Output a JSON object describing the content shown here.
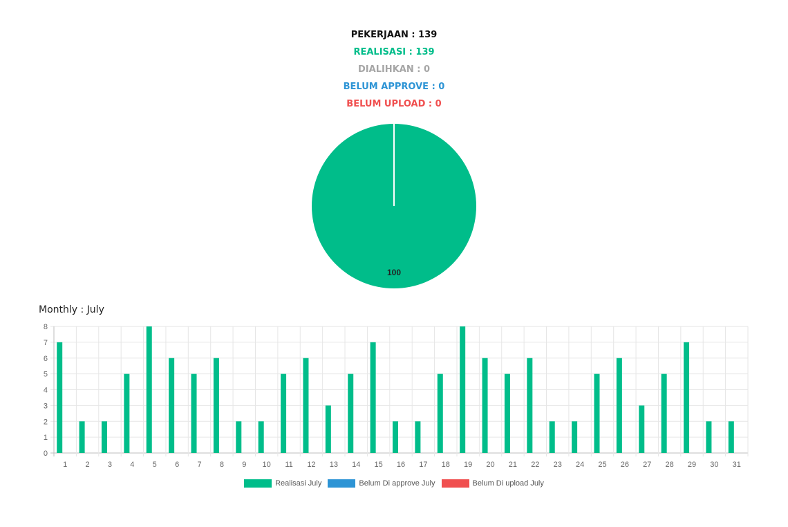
{
  "summary": {
    "pekerjaan": "PEKERJAAN : 139",
    "realisasi": "REALISASI : 139",
    "dialihkan": "DIALIHKAN : 0",
    "belum_approve": "BELUM APPROVE : 0",
    "belum_upload": "BELUM UPLOAD : 0"
  },
  "colors": {
    "realisasi": "#00bd8a",
    "belum_approve": "#2d94d5",
    "belum_upload": "#f04f4f",
    "dialihkan": "#a6a6a6"
  },
  "chart_data": [
    {
      "type": "pie",
      "slices": [
        {
          "label": "Realisasi",
          "value": 100,
          "color": "#00bd8a"
        },
        {
          "label": "Dialihkan",
          "value": 0,
          "color": "#a6a6a6"
        },
        {
          "label": "Belum Approve",
          "value": 0,
          "color": "#2d94d5"
        },
        {
          "label": "Belum Upload",
          "value": 0,
          "color": "#f04f4f"
        }
      ],
      "data_label": "100"
    },
    {
      "type": "bar",
      "title": "Monthly : July",
      "categories": [
        "1",
        "2",
        "3",
        "4",
        "5",
        "6",
        "7",
        "8",
        "9",
        "10",
        "11",
        "12",
        "13",
        "14",
        "15",
        "16",
        "17",
        "18",
        "19",
        "20",
        "21",
        "22",
        "23",
        "24",
        "25",
        "26",
        "27",
        "28",
        "29",
        "30",
        "31"
      ],
      "series": [
        {
          "name": "Realisasi July",
          "color": "#00bd8a",
          "values": [
            7,
            2,
            2,
            5,
            8,
            6,
            5,
            6,
            2,
            2,
            5,
            6,
            3,
            5,
            7,
            2,
            2,
            5,
            8,
            6,
            5,
            6,
            2,
            2,
            5,
            6,
            3,
            5,
            7,
            2,
            2
          ]
        },
        {
          "name": "Belum Di approve July",
          "color": "#2d94d5",
          "values": [
            0,
            0,
            0,
            0,
            0,
            0,
            0,
            0,
            0,
            0,
            0,
            0,
            0,
            0,
            0,
            0,
            0,
            0,
            0,
            0,
            0,
            0,
            0,
            0,
            0,
            0,
            0,
            0,
            0,
            0,
            0
          ]
        },
        {
          "name": "Belum Di upload July",
          "color": "#f04f4f",
          "values": [
            0,
            0,
            0,
            0,
            0,
            0,
            0,
            0,
            0,
            0,
            0,
            0,
            0,
            0,
            0,
            0,
            0,
            0,
            0,
            0,
            0,
            0,
            0,
            0,
            0,
            0,
            0,
            0,
            0,
            0,
            0
          ]
        }
      ],
      "ylim": [
        0,
        8
      ],
      "yticks": [
        "0",
        "1",
        "2",
        "3",
        "4",
        "5",
        "6",
        "7",
        "8"
      ],
      "grid": true,
      "legend": "bottom"
    }
  ]
}
